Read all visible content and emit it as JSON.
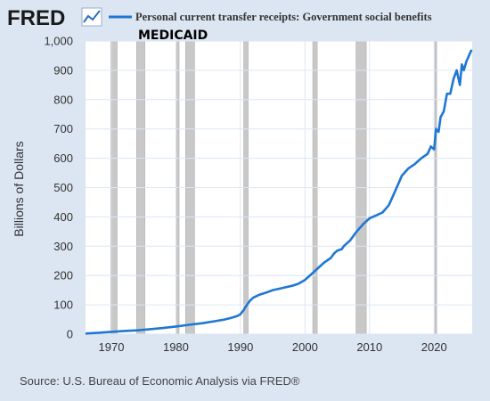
{
  "header": {
    "logo_text": "FRED",
    "logo_icon": "trend-line-icon",
    "series_title": "Personal current transfer receipts: Government social benefits",
    "subtitle": "MEDICAID"
  },
  "footer": {
    "source": "Source: U.S. Bureau of Economic Analysis via FRED®"
  },
  "colors": {
    "background": "#dce6f2",
    "plot_background": "#ffffff",
    "line": "#1f77d4",
    "recession": "#c8c8c8",
    "grid": "#dce6f2"
  },
  "chart_data": {
    "type": "line",
    "title": "Personal current transfer receipts: Government social benefits",
    "subtitle": "MEDICAID",
    "xlabel": "",
    "ylabel": "Billions of Dollars",
    "xlim": [
      1966.0,
      2025.9
    ],
    "ylim": [
      0,
      1000
    ],
    "x_ticks": [
      1970,
      1980,
      1990,
      2000,
      2010,
      2020
    ],
    "y_ticks": [
      0,
      100,
      200,
      300,
      400,
      500,
      600,
      700,
      800,
      900,
      1000
    ],
    "y_tick_labels": [
      "0",
      "100",
      "200",
      "300",
      "400",
      "500",
      "600",
      "700",
      "800",
      "900",
      "1,000"
    ],
    "grid": true,
    "legend": "top",
    "recessions": [
      [
        1969.9,
        1970.9
      ],
      [
        1973.9,
        1975.2
      ],
      [
        1980.0,
        1980.5
      ],
      [
        1981.5,
        1982.9
      ],
      [
        1990.5,
        1991.2
      ],
      [
        2001.2,
        2001.9
      ],
      [
        2007.9,
        2009.5
      ],
      [
        2020.1,
        2020.4
      ]
    ],
    "series": [
      {
        "name": "Personal current transfer receipts: Government social benefits",
        "x": [
          1966.0,
          1968.0,
          1970.0,
          1972.0,
          1974.0,
          1976.0,
          1978.0,
          1980.0,
          1982.0,
          1984.0,
          1986.0,
          1987.5,
          1988.5,
          1989.5,
          1990.0,
          1990.5,
          1991.0,
          1991.5,
          1992.0,
          1993.0,
          1994.0,
          1995.0,
          1996.0,
          1997.0,
          1998.0,
          1999.0,
          2000.0,
          2001.0,
          2002.0,
          2003.0,
          2004.0,
          2004.5,
          2005.0,
          2005.7,
          2006.0,
          2007.0,
          2008.0,
          2009.0,
          2010.0,
          2011.0,
          2012.0,
          2013.0,
          2014.0,
          2015.0,
          2016.0,
          2017.0,
          2018.0,
          2019.0,
          2019.5,
          2020.0,
          2020.3,
          2020.7,
          2021.0,
          2021.5,
          2022.0,
          2022.5,
          2023.0,
          2023.5,
          2024.0,
          2024.3,
          2024.6,
          2025.0,
          2025.5,
          2025.8
        ],
        "y": [
          2,
          5,
          8,
          11,
          13,
          17,
          21,
          26,
          32,
          37,
          44,
          50,
          55,
          62,
          68,
          82,
          100,
          115,
          125,
          135,
          142,
          150,
          155,
          160,
          165,
          172,
          185,
          205,
          225,
          245,
          260,
          275,
          285,
          290,
          300,
          320,
          350,
          375,
          395,
          405,
          415,
          440,
          490,
          540,
          565,
          580,
          600,
          615,
          640,
          630,
          700,
          690,
          740,
          760,
          820,
          820,
          870,
          900,
          850,
          920,
          900,
          930,
          955,
          970
        ]
      }
    ]
  }
}
